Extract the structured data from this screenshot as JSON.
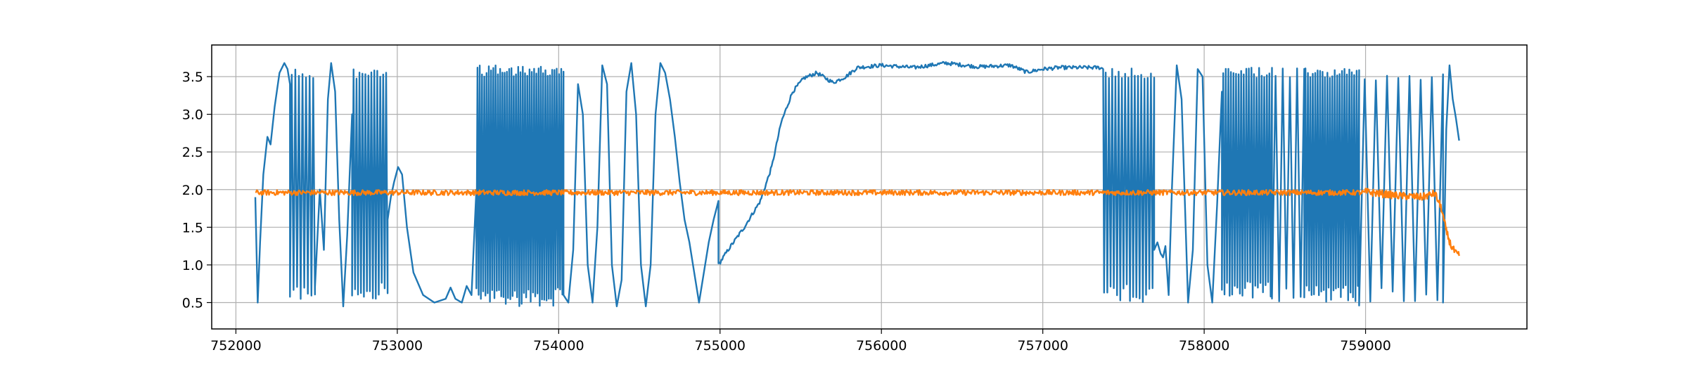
{
  "chart_data": {
    "type": "line",
    "title": "",
    "xlabel": "",
    "ylabel": "",
    "xlim": [
      751850,
      760000
    ],
    "ylim": [
      0.15,
      3.92
    ],
    "grid": true,
    "legend": "none",
    "x_ticks": [
      752000,
      753000,
      754000,
      755000,
      756000,
      757000,
      758000,
      759000
    ],
    "x_tick_labels": [
      "752000",
      "753000",
      "754000",
      "755000",
      "756000",
      "757000",
      "758000",
      "759000"
    ],
    "y_ticks": [
      0.5,
      1.0,
      1.5,
      2.0,
      2.5,
      3.0,
      3.5
    ],
    "y_tick_labels": [
      "0.5",
      "1.0",
      "1.5",
      "2.0",
      "2.5",
      "3.0",
      "3.5"
    ],
    "series": [
      {
        "color": "#1f77b4",
        "x_range": [
          752120,
          759580
        ],
        "segments": [
          {
            "kind": "points",
            "x": [
              752120,
              752135,
              752150,
              752170,
              752195,
              752215,
              752240,
              752270,
              752300,
              752320,
              752335
            ]
          },
          {
            "kind": "points",
            "y": [
              1.9,
              0.5,
              1.3,
              2.2,
              2.7,
              2.6,
              3.1,
              3.55,
              3.68,
              3.6,
              3.4
            ]
          },
          {
            "kind": "osc",
            "x0": 752335,
            "x1": 752490,
            "period": 22,
            "lo": 0.5,
            "hi": 3.62
          },
          {
            "kind": "points",
            "x": [
              752490,
              752520,
              752545,
              752570,
              752590,
              752615,
              752640,
              752665,
              752690,
              752720
            ],
            "y": [
              0.7,
              2.0,
              1.2,
              3.2,
              3.68,
              3.3,
              1.6,
              0.45,
              1.4,
              3.0
            ]
          },
          {
            "kind": "osc",
            "x0": 752720,
            "x1": 752940,
            "period": 18,
            "lo": 0.55,
            "hi": 3.62
          },
          {
            "kind": "points",
            "x": [
              752940,
              752960,
              752980,
              753005,
              753030,
              753060,
              753100,
              753160,
              753230,
              753300,
              753330,
              753360,
              753400,
              753430,
              753460,
              753490
            ],
            "y": [
              1.6,
              1.9,
              2.1,
              2.3,
              2.2,
              1.5,
              0.9,
              0.6,
              0.5,
              0.55,
              0.7,
              0.55,
              0.5,
              0.72,
              0.6,
              2.0
            ]
          },
          {
            "kind": "osc",
            "x0": 753490,
            "x1": 754030,
            "period": 14,
            "lo": 0.45,
            "hi": 3.65
          },
          {
            "kind": "points",
            "x": [
              754030,
              754060,
              754090,
              754120,
              754150,
              754180,
              754210,
              754240,
              754270,
              754300,
              754330,
              754360,
              754390,
              754420,
              754450,
              754480,
              754510,
              754540,
              754570,
              754600,
              754630,
              754660,
              754690,
              754720,
              754750,
              754780,
              754810,
              754840,
              754870,
              754900,
              754930,
              754960,
              754990
            ],
            "y": [
              0.6,
              0.5,
              1.2,
              3.4,
              3.0,
              1.0,
              0.5,
              1.5,
              3.65,
              3.4,
              1.0,
              0.45,
              0.8,
              3.3,
              3.68,
              3.0,
              1.0,
              0.45,
              1.0,
              3.0,
              3.68,
              3.55,
              3.2,
              2.7,
              2.1,
              1.6,
              1.3,
              0.9,
              0.5,
              0.9,
              1.3,
              1.6,
              1.85
            ]
          },
          {
            "kind": "noisy",
            "x": [
              754990,
              755050,
              755150,
              755250,
              755320,
              755380,
              755450,
              755520,
              755600,
              755700,
              755780,
              755850,
              756000,
              756200,
              756400,
              756600,
              756800,
              756900,
              757000,
              757100,
              757200,
              757350,
              757380
            ],
            "y": [
              1.0,
              1.2,
              1.5,
              1.85,
              2.3,
              2.9,
              3.3,
              3.48,
              3.55,
              3.42,
              3.5,
              3.62,
              3.65,
              3.62,
              3.68,
              3.63,
              3.65,
              3.56,
              3.6,
              3.62,
              3.62,
              3.62,
              3.6
            ]
          },
          {
            "kind": "osc",
            "x0": 757380,
            "x1": 757690,
            "period": 20,
            "lo": 0.5,
            "hi": 3.62
          },
          {
            "kind": "points",
            "x": [
              757690,
              757710,
              757730,
              757745,
              757760,
              757780,
              757800,
              757830,
              757860,
              757900,
              757930,
              757960,
              757990,
              758020,
              758050,
              758080,
              758110
            ],
            "y": [
              1.2,
              1.3,
              1.15,
              1.1,
              1.25,
              0.6,
              2.0,
              3.65,
              3.2,
              0.5,
              1.2,
              3.6,
              3.5,
              1.0,
              0.5,
              1.8,
              3.3
            ]
          },
          {
            "kind": "osc",
            "x0": 758110,
            "x1": 758420,
            "period": 16,
            "lo": 0.55,
            "hi": 3.62
          },
          {
            "kind": "osc",
            "x0": 758420,
            "x1": 758620,
            "period": 45,
            "lo": 0.5,
            "hi": 3.62
          },
          {
            "kind": "osc",
            "x0": 758620,
            "x1": 758960,
            "period": 15,
            "lo": 0.5,
            "hi": 3.62
          },
          {
            "kind": "osc",
            "x0": 758960,
            "x1": 759480,
            "period": 70,
            "lo": 0.45,
            "hi": 3.6
          },
          {
            "kind": "points",
            "x": [
              759480,
              759500,
              759520,
              759540,
              759560,
              759580
            ],
            "y": [
              0.5,
              2.8,
              3.65,
              3.2,
              2.95,
              2.65
            ]
          }
        ]
      },
      {
        "color": "#ff7f0e",
        "base": 1.96,
        "noise": 0.035,
        "x_range": [
          752120,
          759580
        ],
        "tail_x": [
          759000,
          759200,
          759350,
          759430,
          759470,
          759500,
          759530,
          759560,
          759580
        ],
        "tail_y": [
          1.97,
          1.92,
          1.9,
          1.95,
          1.75,
          1.45,
          1.25,
          1.15,
          1.12
        ]
      }
    ]
  }
}
